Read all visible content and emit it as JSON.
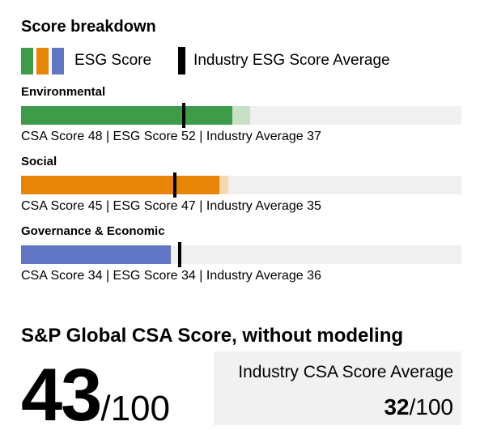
{
  "title": "Score breakdown",
  "legend": {
    "esg_label": "ESG Score",
    "industry_label": "Industry ESG Score Average"
  },
  "colors": {
    "track": "#f0f0f0",
    "tick": "#000000",
    "box_bg": "#f1f1f1"
  },
  "chart_data": {
    "type": "bar",
    "orientation": "horizontal",
    "scale": [
      0,
      100
    ],
    "grid": false,
    "categories": [
      "Environmental",
      "Social",
      "Governance & Economic"
    ],
    "series": [
      {
        "name": "CSA Score",
        "values": [
          48,
          45,
          34
        ]
      },
      {
        "name": "ESG Score",
        "values": [
          52,
          47,
          34
        ]
      },
      {
        "name": "Industry Average",
        "values": [
          37,
          35,
          36
        ]
      }
    ],
    "sections": [
      {
        "label": "Environmental",
        "csa": 48,
        "esg": 52,
        "industry_avg": 37,
        "caption": "CSA Score 48 | ESG Score 52 | Industry Average 37",
        "color": "#3d9b4a",
        "color_light": "#c6e1c6"
      },
      {
        "label": "Social",
        "csa": 45,
        "esg": 47,
        "industry_avg": 35,
        "caption": "CSA Score 45 | ESG Score 47 | Industry Average 35",
        "color": "#e98506",
        "color_light": "#f7d9b0"
      },
      {
        "label": "Governance & Economic",
        "csa": 34,
        "esg": 34,
        "industry_avg": 36,
        "caption": "CSA Score 34 | ESG Score 34 | Industry Average 36",
        "color": "#6076c5",
        "color_light": "#6076c5"
      }
    ]
  },
  "summary": {
    "heading": "S&P Global CSA Score, without modeling",
    "score": "43",
    "score_suffix": "/100",
    "industry_label": "Industry CSA Score Average",
    "industry_value": "32",
    "industry_suffix": "/100"
  }
}
